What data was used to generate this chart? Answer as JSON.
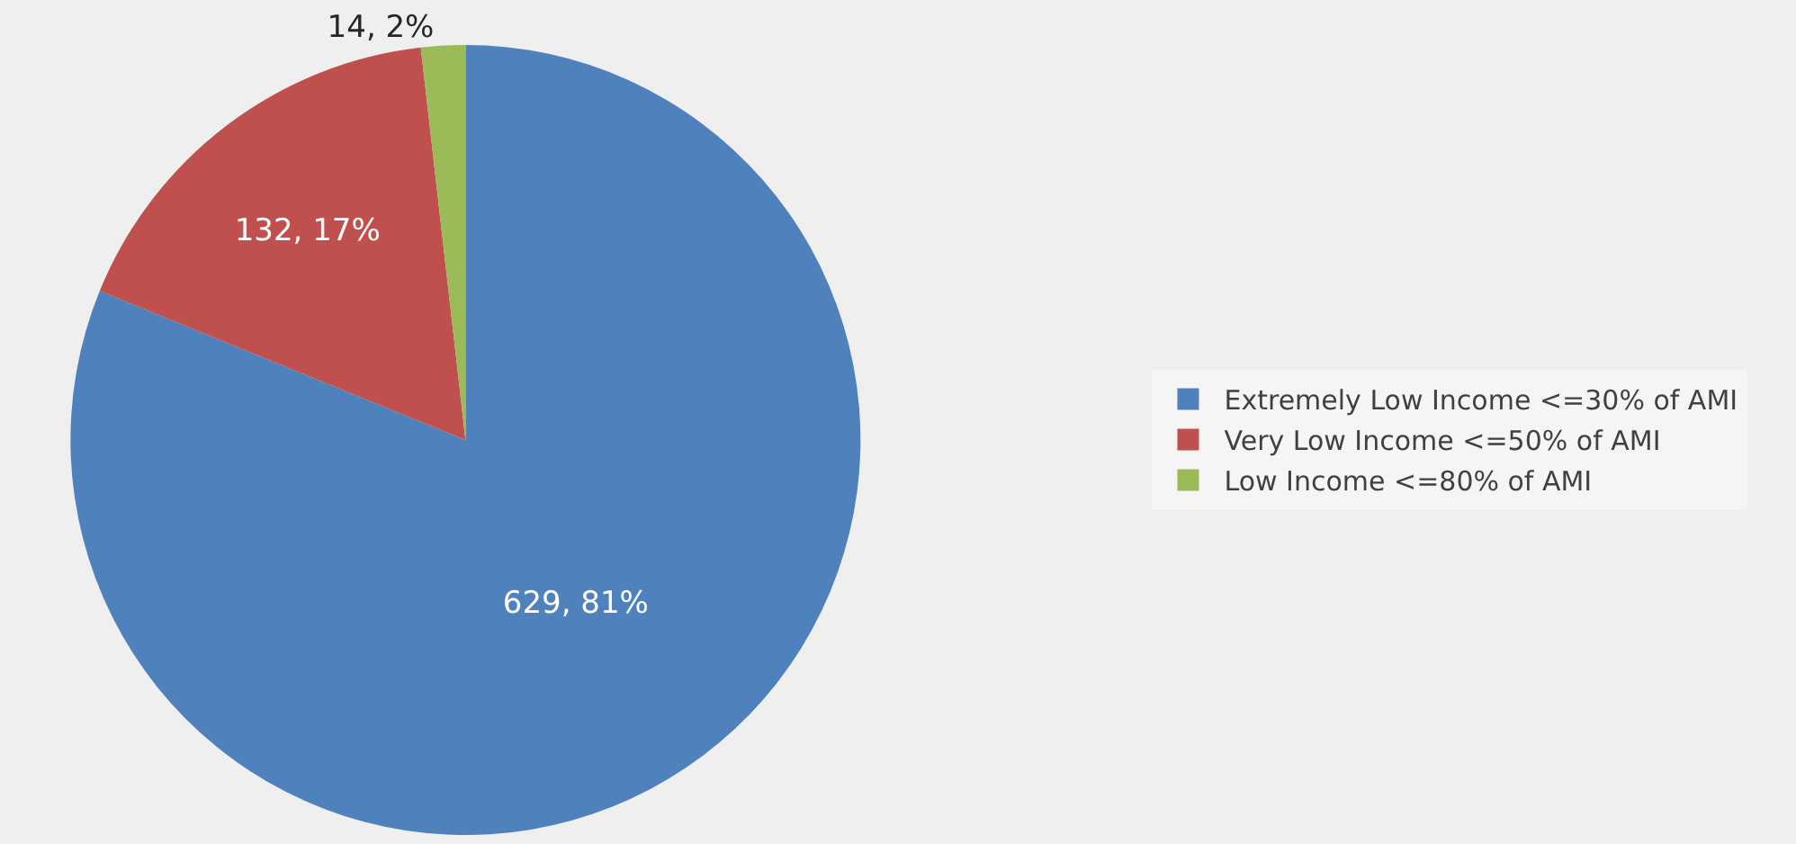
{
  "chart_data": {
    "type": "pie",
    "categories": [
      "Extremely Low Income <=30% of AMI",
      "Very Low Income <=50% of AMI",
      "Low Income <=80% of AMI"
    ],
    "values": [
      629,
      132,
      14
    ],
    "colors": [
      "#4f81bd",
      "#c0504d",
      "#9bbb59"
    ],
    "value_labels": [
      "629, 81%",
      "132, 17%",
      "14, 2%"
    ],
    "legend": "right"
  }
}
